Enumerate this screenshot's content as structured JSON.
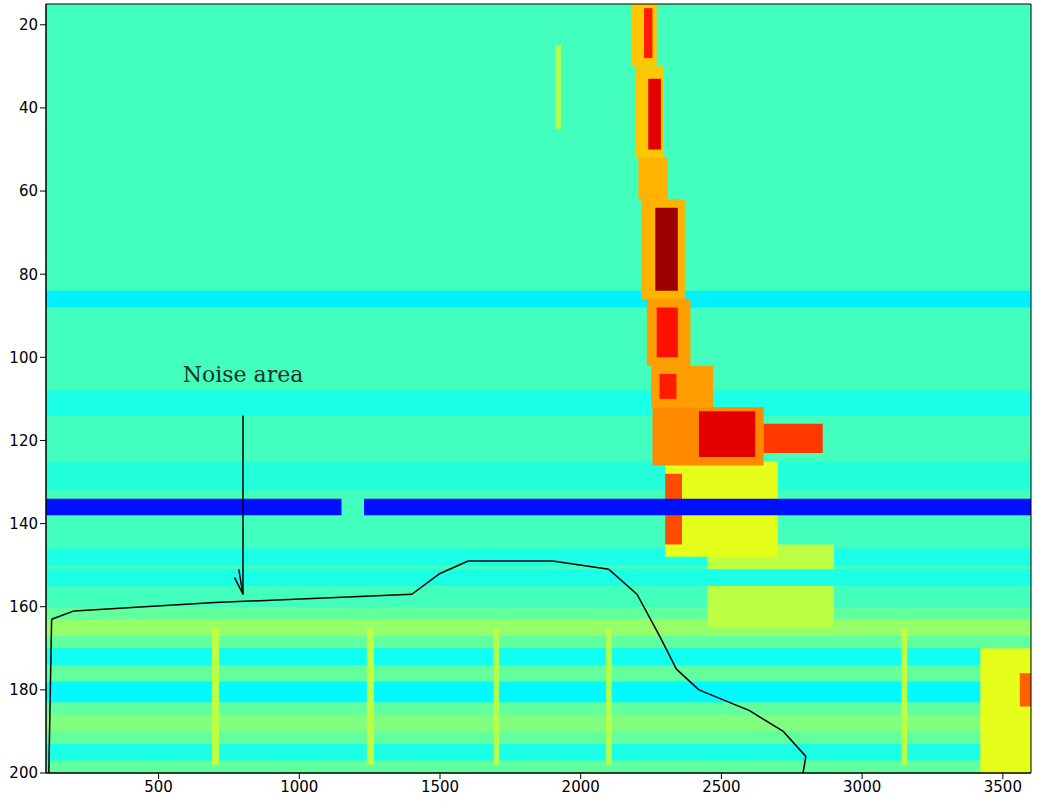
{
  "chart_data": {
    "type": "heatmap",
    "xlim": [
      100,
      3600
    ],
    "ylim": [
      15,
      200
    ],
    "xticks": [
      500,
      1000,
      1500,
      2000,
      2500,
      3000,
      3500
    ],
    "yticks": [
      20,
      40,
      60,
      80,
      100,
      120,
      140,
      160,
      180,
      200
    ],
    "color_range": [
      0,
      1
    ],
    "annotations": [
      "Noise area"
    ],
    "cells": [
      [
        100,
        3600,
        15,
        200,
        0.44
      ],
      [
        100,
        3600,
        84,
        88,
        0.36
      ],
      [
        100,
        3600,
        108,
        114,
        0.4
      ],
      [
        100,
        3600,
        125,
        132,
        0.41
      ],
      [
        100,
        3600,
        146,
        150,
        0.4
      ],
      [
        100,
        3600,
        160,
        200,
        0.47
      ],
      [
        100,
        3600,
        163,
        167,
        0.52
      ],
      [
        100,
        3600,
        170,
        174,
        0.39
      ],
      [
        100,
        3600,
        178,
        183,
        0.37
      ],
      [
        100,
        3600,
        186,
        190,
        0.5
      ],
      [
        100,
        3600,
        193,
        197,
        0.4
      ],
      [
        690,
        715,
        165,
        198,
        0.56
      ],
      [
        1240,
        1265,
        165,
        198,
        0.56
      ],
      [
        1690,
        1710,
        165,
        198,
        0.55
      ],
      [
        2090,
        2110,
        165,
        198,
        0.55
      ],
      [
        3140,
        3160,
        165,
        198,
        0.56
      ],
      [
        1910,
        1930,
        25,
        45,
        0.55
      ],
      [
        2450,
        2900,
        145,
        165,
        0.56
      ],
      [
        2300,
        2700,
        125,
        148,
        0.6
      ],
      [
        2180,
        2270,
        15,
        30,
        0.68
      ],
      [
        2225,
        2255,
        16,
        28,
        0.85
      ],
      [
        2195,
        2295,
        30,
        52,
        0.68
      ],
      [
        2240,
        2285,
        33,
        50,
        0.9
      ],
      [
        2205,
        2310,
        52,
        62,
        0.7
      ],
      [
        2215,
        2370,
        62,
        86,
        0.7
      ],
      [
        2265,
        2345,
        64,
        84,
        0.97
      ],
      [
        2235,
        2390,
        86,
        102,
        0.72
      ],
      [
        2270,
        2345,
        88,
        100,
        0.86
      ],
      [
        2250,
        2470,
        102,
        112,
        0.72
      ],
      [
        2280,
        2340,
        104,
        110,
        0.85
      ],
      [
        2255,
        2650,
        112,
        126,
        0.74
      ],
      [
        2420,
        2620,
        113,
        124,
        0.9
      ],
      [
        2650,
        2860,
        116,
        123,
        0.82
      ],
      [
        2300,
        2360,
        128,
        145,
        0.8
      ],
      [
        100,
        1150,
        134,
        138,
        0.14
      ],
      [
        1230,
        3600,
        134,
        138,
        0.14
      ],
      [
        100,
        3600,
        151,
        155,
        0.4
      ],
      [
        3420,
        3600,
        170,
        200,
        0.6
      ],
      [
        3560,
        3600,
        176,
        184,
        0.78
      ]
    ]
  }
}
